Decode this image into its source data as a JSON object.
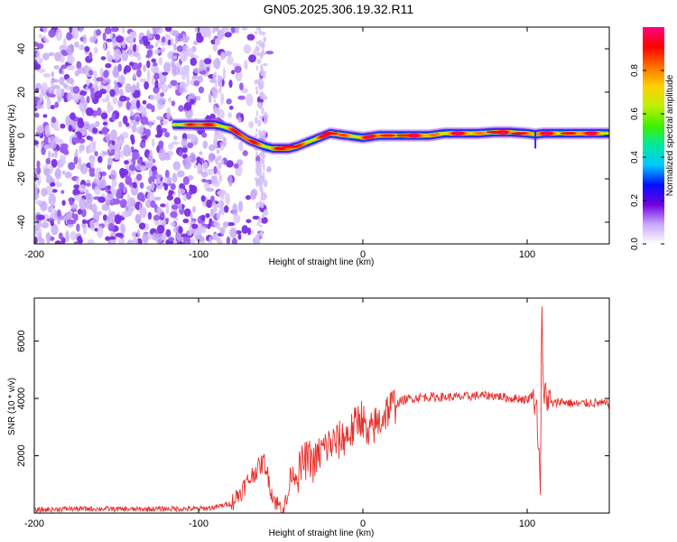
{
  "title": "GN05.2025.306.19.32.R11",
  "colors": {
    "snr_line": "#e8302c",
    "axis": "#000000",
    "scatter": "#7f3fe0"
  },
  "chart_data": [
    {
      "type": "heatmap",
      "name": "spectrogram",
      "xlabel": "Height of straight line (km)",
      "ylabel": "Frequency (Hz)",
      "xlim": [
        -200,
        150
      ],
      "ylim": [
        -50,
        50
      ],
      "xticks": [
        -200,
        -100,
        0,
        100
      ],
      "xtick_labels": [
        "-200",
        "-100",
        "0",
        "100"
      ],
      "yticks": [
        -40,
        -20,
        0,
        20,
        40
      ],
      "ytick_labels": [
        "-40",
        "-20",
        "0",
        "20",
        "40"
      ],
      "trace": {
        "x": [
          -115,
          -100,
          -90,
          -80,
          -70,
          -60,
          -55,
          -50,
          -45,
          -40,
          -30,
          -20,
          -10,
          0,
          10,
          20,
          30,
          40,
          50,
          60,
          70,
          80,
          90,
          100,
          105,
          110,
          120,
          130,
          140,
          150
        ],
        "y": [
          5,
          5,
          5,
          3,
          -2,
          -5,
          -6,
          -6,
          -6,
          -5,
          -2,
          1,
          0,
          -1,
          0,
          0,
          0,
          0,
          1,
          1,
          1,
          1.5,
          1.5,
          1,
          0.5,
          1,
          1,
          1,
          1,
          1
        ]
      },
      "noise_region": [
        -200,
        -55
      ],
      "colorbar": {
        "label": "Normalized spectral amplitude",
        "range": [
          0,
          1
        ],
        "ticks": [
          0.0,
          0.2,
          0.4,
          0.6,
          0.8
        ],
        "tick_labels": [
          "0.0",
          "0.2",
          "0.4",
          "0.6",
          "0.8"
        ],
        "stops": [
          "#ffffff",
          "#c8a8ff",
          "#7000e0",
          "#0010ff",
          "#00c8ff",
          "#00e8a0",
          "#40f000",
          "#c0f000",
          "#ffd000",
          "#ff7000",
          "#ff0000",
          "#ff0080"
        ]
      }
    },
    {
      "type": "line",
      "name": "snr",
      "xlabel": "Height of straight line (km)",
      "ylabel": "SNR (10 * v/v)",
      "xlim": [
        -200,
        150
      ],
      "ylim": [
        0,
        7500
      ],
      "xticks": [
        -200,
        -100,
        0,
        100
      ],
      "xtick_labels": [
        "-200",
        "-100",
        "0",
        "100"
      ],
      "yticks": [
        2000,
        4000,
        6000
      ],
      "ytick_labels": [
        "2000",
        "4000",
        "6000"
      ],
      "series": [
        {
          "name": "SNR",
          "x": [
            -200,
            -180,
            -160,
            -140,
            -120,
            -100,
            -90,
            -80,
            -75,
            -70,
            -65,
            -60,
            -57,
            -55,
            -52,
            -50,
            -48,
            -46,
            -45,
            -44,
            -40,
            -36,
            -32,
            -30,
            -25,
            -20,
            -15,
            -10,
            -6,
            -2,
            0,
            3,
            6,
            10,
            15,
            20,
            25,
            30,
            35,
            40,
            50,
            60,
            70,
            80,
            90,
            95,
            100,
            104,
            106,
            108,
            109,
            110,
            111,
            113,
            116,
            120,
            130,
            140,
            150
          ],
          "y": [
            100,
            150,
            150,
            130,
            150,
            150,
            200,
            350,
            700,
            1100,
            1500,
            1800,
            1100,
            600,
            300,
            200,
            250,
            450,
            800,
            1400,
            1300,
            1800,
            1900,
            1700,
            2200,
            2400,
            2500,
            2700,
            2900,
            3400,
            3300,
            2500,
            3000,
            3200,
            3600,
            3800,
            3950,
            4000,
            4050,
            4050,
            4050,
            4050,
            4100,
            4100,
            4000,
            4000,
            3950,
            4200,
            3500,
            1100,
            7500,
            3500,
            4300,
            3900,
            3800,
            3900,
            3800,
            3850,
            3800
          ]
        }
      ]
    }
  ]
}
